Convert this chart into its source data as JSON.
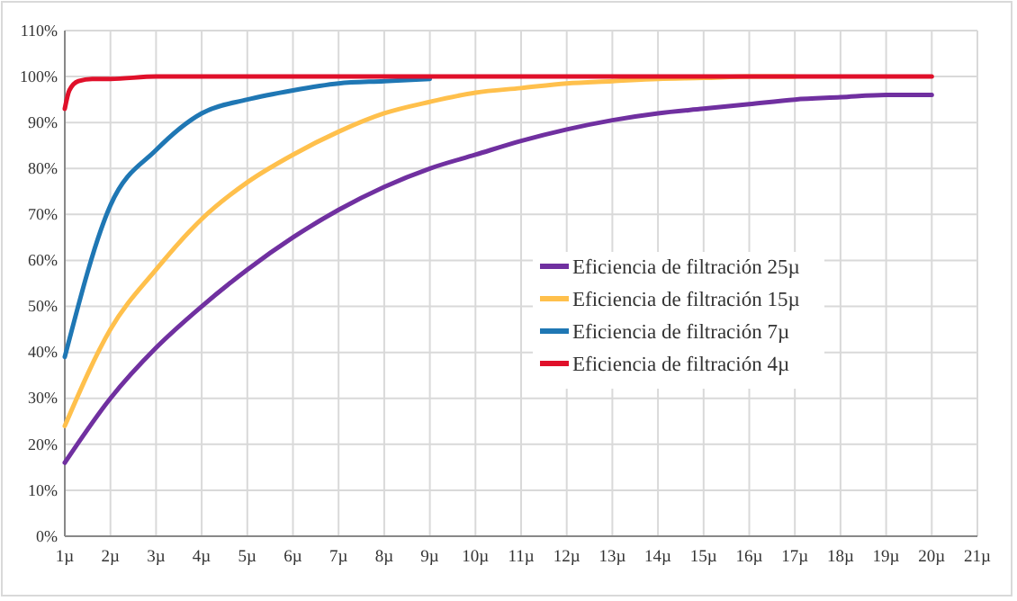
{
  "chart_data": {
    "type": "line",
    "x": [
      1,
      2,
      3,
      4,
      5,
      6,
      7,
      8,
      9,
      10,
      11,
      12,
      13,
      14,
      15,
      16,
      17,
      18,
      19,
      20
    ],
    "series": [
      {
        "name": "Eficiencia de filtración 25µ",
        "color": "#7030a0",
        "values": [
          16,
          30,
          41,
          50,
          58,
          65,
          71,
          76,
          80,
          83,
          86,
          88.5,
          90.5,
          92,
          93,
          94,
          95,
          95.5,
          96,
          96
        ]
      },
      {
        "name": "Eficiencia de filtración 15µ",
        "color": "#ffc04c",
        "values": [
          24,
          45,
          58,
          69,
          77,
          83,
          88,
          92,
          94.5,
          96.5,
          97.5,
          98.5,
          99,
          99.5,
          99.7,
          100,
          100,
          null,
          null,
          null
        ]
      },
      {
        "name": "Eficiencia de filtración 7µ",
        "color": "#1f77b4",
        "values": [
          39,
          72,
          84,
          92,
          95,
          97,
          98.5,
          99,
          99.5,
          null,
          null,
          null,
          null,
          null,
          null,
          null,
          null,
          null,
          null,
          null
        ]
      },
      {
        "name": "Eficiencia de filtración 4µ",
        "color": "#e0102a",
        "x": [
          1,
          1.1,
          1.3,
          1.6,
          2,
          3,
          4,
          5,
          6,
          7,
          8,
          9,
          10,
          11,
          12,
          13,
          14,
          15,
          16,
          17,
          18,
          19,
          20
        ],
        "values": [
          93,
          97,
          99,
          99.5,
          99.5,
          100,
          100,
          100,
          100,
          100,
          100,
          100,
          100,
          100,
          100,
          100,
          100,
          100,
          100,
          100,
          100,
          100,
          100
        ]
      }
    ],
    "xlim": [
      1,
      21
    ],
    "xticks": [
      {
        "value": 1,
        "label": "1µ"
      },
      {
        "value": 2,
        "label": "2µ"
      },
      {
        "value": 3,
        "label": "3µ"
      },
      {
        "value": 4,
        "label": "4µ"
      },
      {
        "value": 5,
        "label": "5µ"
      },
      {
        "value": 6,
        "label": "6µ"
      },
      {
        "value": 7,
        "label": "7µ"
      },
      {
        "value": 8,
        "label": "8µ"
      },
      {
        "value": 9,
        "label": "9µ"
      },
      {
        "value": 10,
        "label": "10µ"
      },
      {
        "value": 11,
        "label": "11µ"
      },
      {
        "value": 12,
        "label": "12µ"
      },
      {
        "value": 13,
        "label": "13µ"
      },
      {
        "value": 14,
        "label": "14µ"
      },
      {
        "value": 15,
        "label": "15µ"
      },
      {
        "value": 16,
        "label": "16µ"
      },
      {
        "value": 17,
        "label": "17µ"
      },
      {
        "value": 18,
        "label": "18µ"
      },
      {
        "value": 19,
        "label": "19µ"
      },
      {
        "value": 20,
        "label": "20µ"
      },
      {
        "value": 21,
        "label": "21µ"
      }
    ],
    "ylim": [
      0,
      110
    ],
    "yticks": [
      {
        "value": 0,
        "label": "0%"
      },
      {
        "value": 10,
        "label": "10%"
      },
      {
        "value": 20,
        "label": "20%"
      },
      {
        "value": 30,
        "label": "30%"
      },
      {
        "value": 40,
        "label": "40%"
      },
      {
        "value": 50,
        "label": "50%"
      },
      {
        "value": 60,
        "label": "60%"
      },
      {
        "value": 70,
        "label": "70%"
      },
      {
        "value": 80,
        "label": "80%"
      },
      {
        "value": 90,
        "label": "90%"
      },
      {
        "value": 100,
        "label": "100%"
      },
      {
        "value": 110,
        "label": "110%"
      }
    ],
    "grid": true,
    "legend": "right",
    "marker": "none",
    "line_style": "solid"
  }
}
